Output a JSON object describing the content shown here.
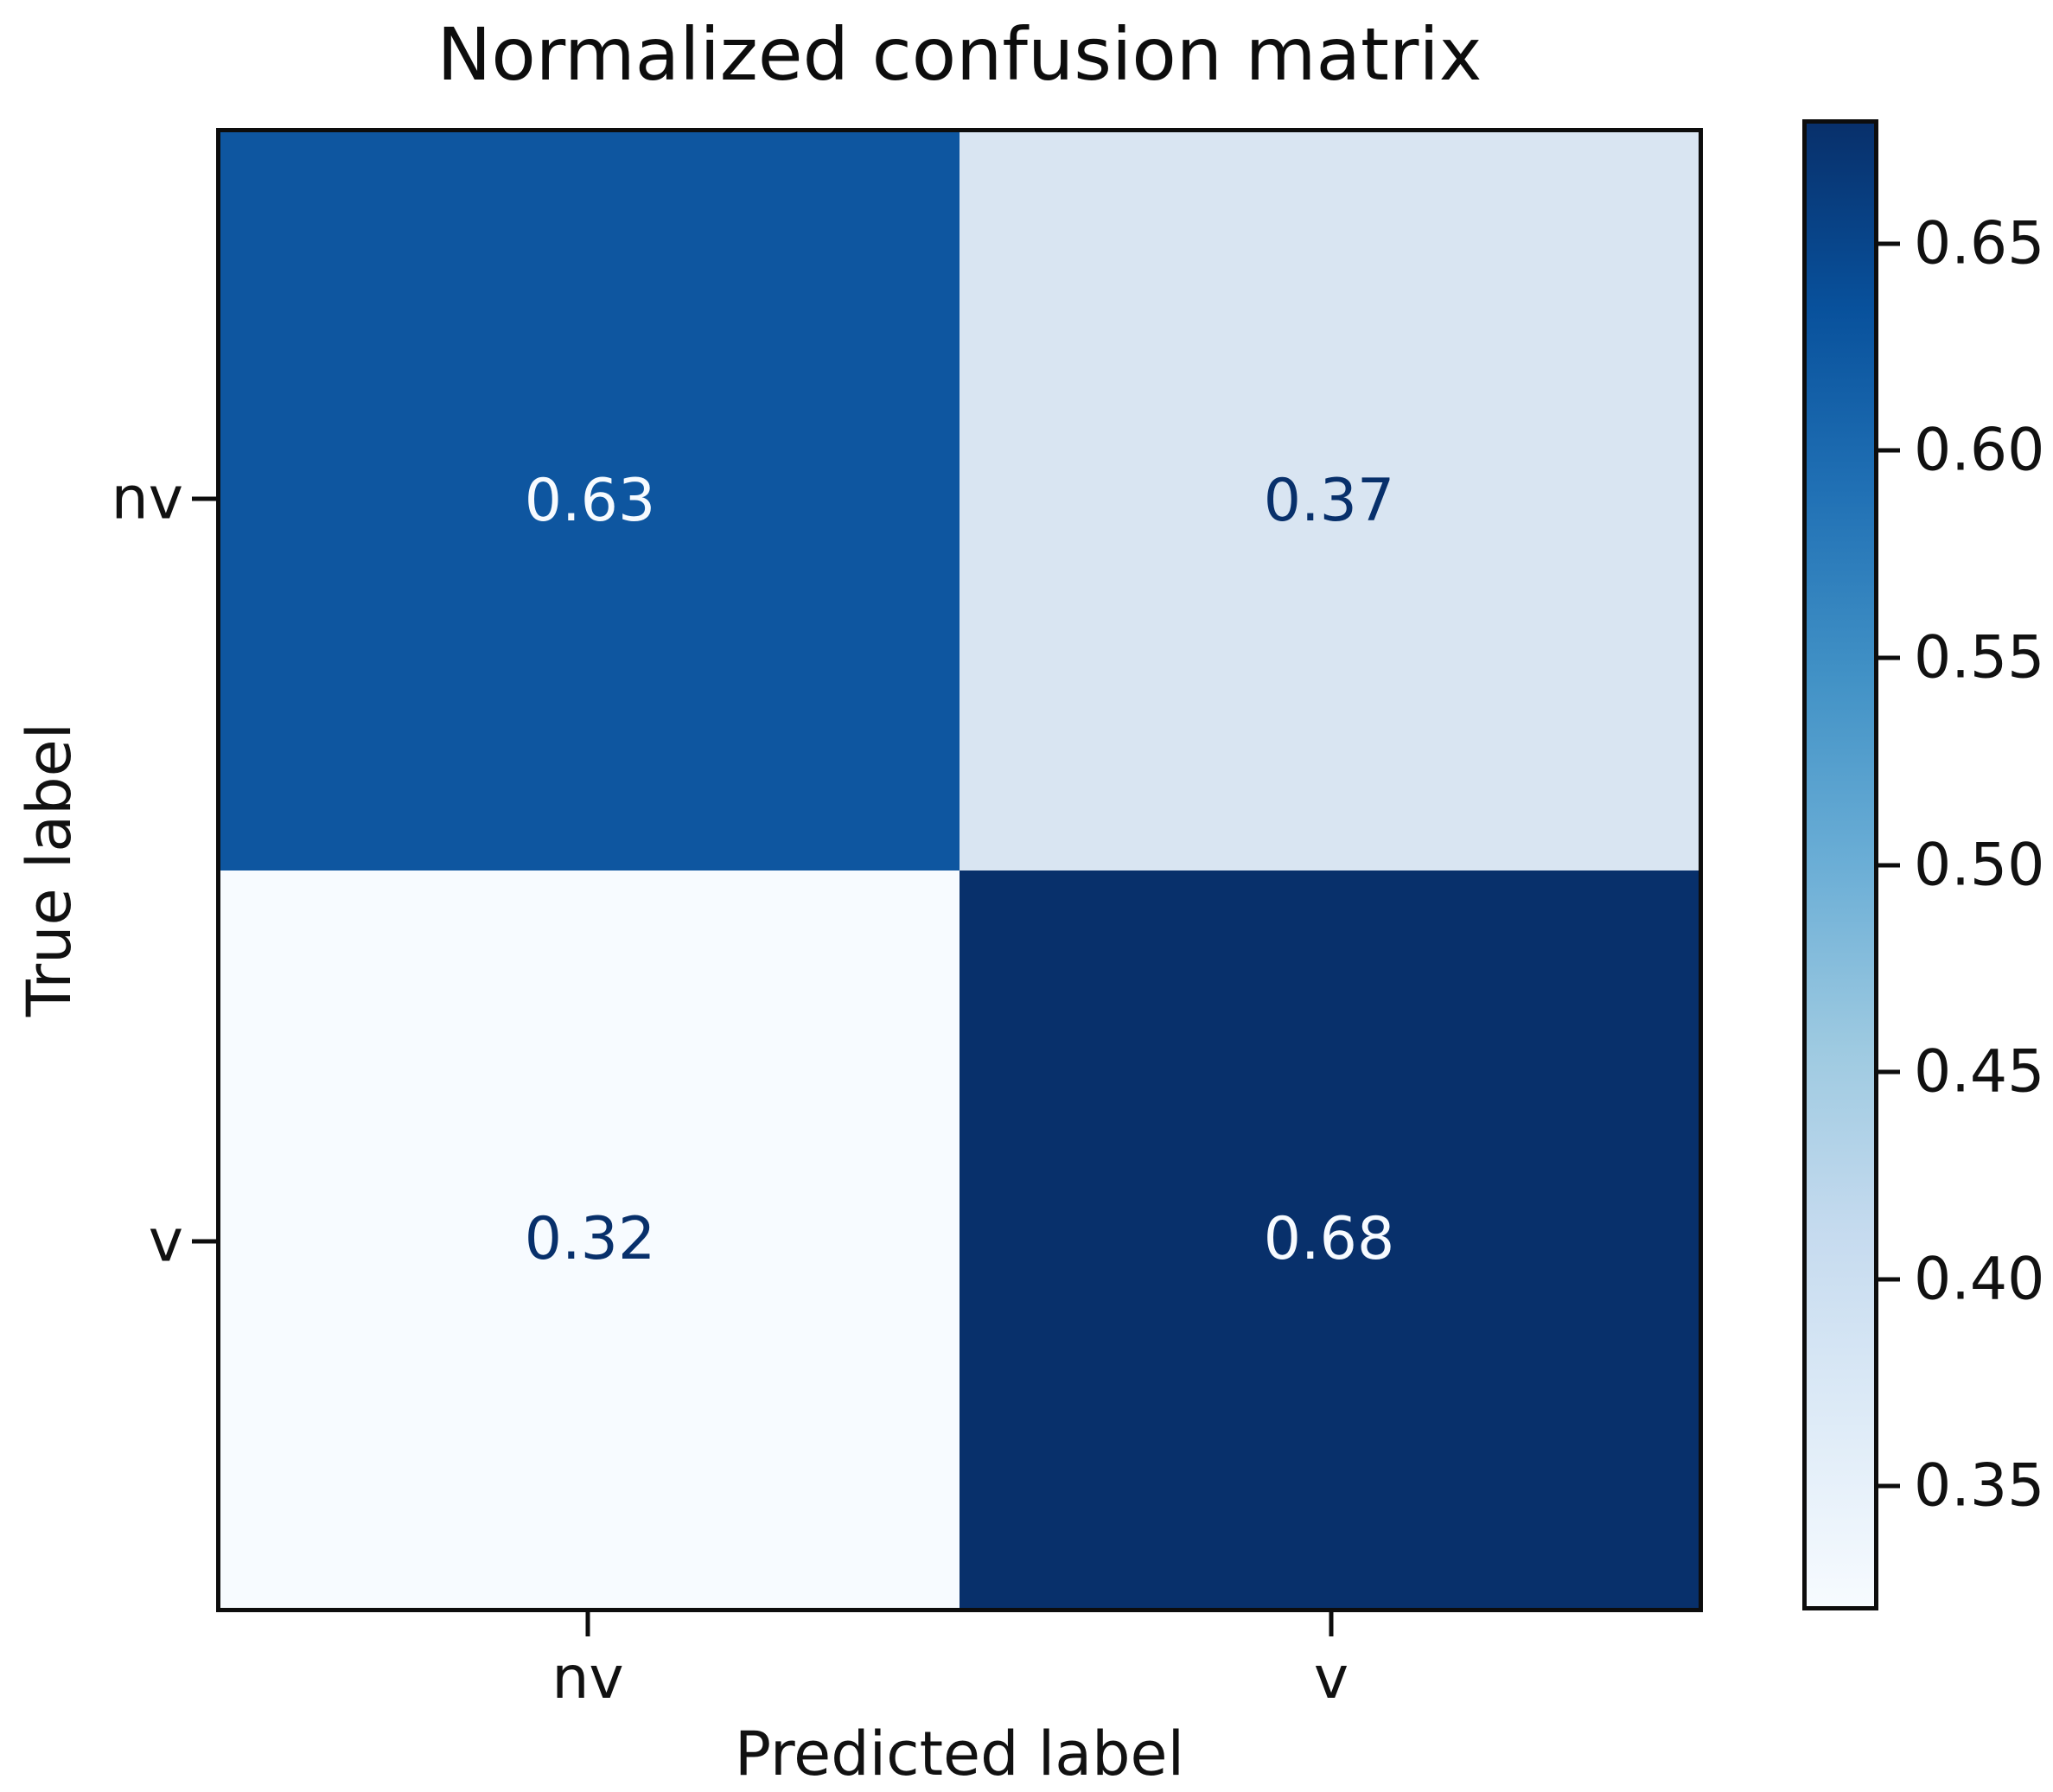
{
  "chart_data": {
    "type": "heatmap",
    "title": "Normalized confusion matrix",
    "xlabel": "Predicted label",
    "ylabel": "True label",
    "x_categories": [
      "nv",
      "v"
    ],
    "y_categories": [
      "nv",
      "v"
    ],
    "matrix": [
      [
        0.63,
        0.37
      ],
      [
        0.32,
        0.68
      ]
    ],
    "cells": [
      {
        "row": "nv",
        "col": "nv",
        "label": "0.63",
        "bg": "#0e56a0",
        "text_color": "#f7fbff"
      },
      {
        "row": "nv",
        "col": "v",
        "label": "0.37",
        "bg": "#d9e5f2",
        "text_color": "#08306b"
      },
      {
        "row": "v",
        "col": "nv",
        "label": "0.32",
        "bg": "#f7fbff",
        "text_color": "#08306b"
      },
      {
        "row": "v",
        "col": "v",
        "label": "0.68",
        "bg": "#08306b",
        "text_color": "#f7fbff"
      }
    ],
    "colormap": "Blues",
    "colorbar": {
      "vmin": 0.32,
      "vmax": 0.68,
      "tick_labels": [
        "0.65",
        "0.60",
        "0.55",
        "0.50",
        "0.45",
        "0.40",
        "0.35"
      ],
      "tick_values": [
        0.65,
        0.6,
        0.55,
        0.5,
        0.45,
        0.4,
        0.35
      ],
      "gradient_top_to_bottom": [
        "#08306b",
        "#08519c",
        "#2171b5",
        "#4292c6",
        "#6baed6",
        "#9ecae1",
        "#c6dbef",
        "#deebf7",
        "#f7fbff"
      ]
    },
    "grid": false,
    "legend": false
  }
}
